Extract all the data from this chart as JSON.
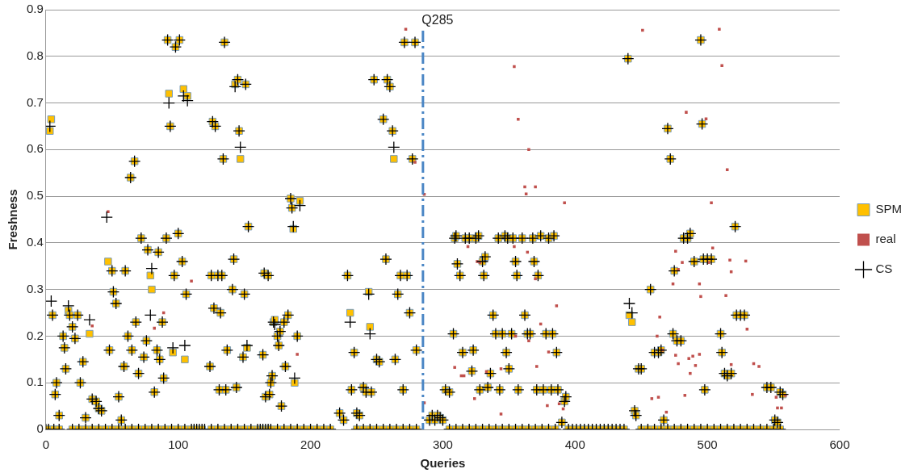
{
  "chart_data": {
    "type": "scatter",
    "xlabel": "Queries",
    "ylabel": "Freshness",
    "xlim": [
      0,
      600
    ],
    "xticks": [
      0,
      100,
      200,
      300,
      400,
      500,
      600
    ],
    "ylim": [
      0,
      0.9
    ],
    "yticks": [
      0,
      0.1,
      0.2,
      0.3,
      0.4,
      0.5,
      0.6,
      0.7,
      0.8,
      0.9
    ],
    "grid": "y",
    "legend": "right",
    "ref_lines": [
      {
        "axis": "x",
        "value": 285,
        "label": "Q285",
        "color": "#4a86c5",
        "line_style": "dashdot"
      }
    ],
    "series": [
      {
        "name": "SPM",
        "color": "#ffc000",
        "marker": "square",
        "x": [
          3,
          4,
          5,
          7,
          8,
          10,
          13,
          14,
          15,
          17,
          18,
          20,
          22,
          24,
          26,
          28,
          30,
          33,
          35,
          38,
          40,
          42,
          47,
          48,
          50,
          51,
          53,
          55,
          57,
          59,
          60,
          62,
          64,
          65,
          67,
          68,
          70,
          72,
          74,
          76,
          77,
          79,
          80,
          82,
          84,
          85,
          86,
          88,
          89,
          91,
          92,
          93,
          94,
          96,
          97,
          98,
          100,
          101,
          103,
          104,
          105,
          106,
          107,
          124,
          125,
          126,
          127,
          128,
          130,
          131,
          132,
          133,
          134,
          135,
          136,
          137,
          141,
          142,
          143,
          144,
          145,
          146,
          147,
          149,
          150,
          151,
          152,
          153,
          164,
          165,
          166,
          168,
          169,
          170,
          171,
          172,
          173,
          175,
          176,
          177,
          178,
          180,
          181,
          183,
          185,
          186,
          187,
          188,
          190,
          192,
          222,
          225,
          228,
          230,
          231,
          233,
          235,
          237,
          240,
          242,
          244,
          245,
          246,
          248,
          250,
          252,
          255,
          257,
          258,
          260,
          262,
          263,
          264,
          266,
          268,
          270,
          271,
          273,
          275,
          277,
          279,
          280,
          290,
          292,
          294,
          296,
          298,
          300,
          302,
          305,
          308,
          309,
          310,
          311,
          313,
          315,
          317,
          320,
          322,
          323,
          325,
          327,
          328,
          330,
          331,
          332,
          334,
          336,
          338,
          340,
          342,
          343,
          345,
          347,
          348,
          349,
          350,
          352,
          353,
          355,
          356,
          357,
          360,
          362,
          364,
          366,
          368,
          369,
          371,
          372,
          374,
          376,
          378,
          380,
          382,
          383,
          384,
          386,
          387,
          390,
          392,
          393,
          440,
          441,
          443,
          445,
          446,
          448,
          450,
          457,
          460,
          463,
          465,
          467,
          470,
          472,
          474,
          475,
          477,
          480,
          482,
          485,
          487,
          490,
          495,
          496,
          497,
          498,
          500,
          503,
          510,
          511,
          513,
          515,
          518,
          521,
          522,
          525,
          528,
          545,
          548,
          551,
          553,
          555,
          557,
          0,
          2,
          6,
          10,
          20,
          25,
          30,
          35,
          40,
          45,
          50,
          55,
          60,
          65,
          70,
          75,
          80,
          85,
          90,
          95,
          100,
          105,
          110,
          114,
          118,
          125,
          130,
          135,
          140,
          145,
          150,
          155,
          160,
          162,
          164,
          166,
          168,
          170,
          175,
          180,
          185,
          190,
          195,
          200,
          205,
          210,
          215,
          235,
          240,
          245,
          250,
          255,
          260,
          265,
          270,
          275,
          280,
          305,
          310,
          315,
          320,
          325,
          330,
          335,
          340,
          345,
          350,
          355,
          360,
          365,
          370,
          375,
          380,
          385,
          395,
          398,
          401,
          404,
          407,
          410,
          413,
          416,
          419,
          422,
          425,
          428,
          431,
          434,
          437,
          450,
          455,
          460,
          465,
          470,
          475,
          480,
          485,
          490,
          495,
          500,
          505,
          510,
          515,
          520,
          525,
          530,
          535,
          540,
          545,
          550,
          555
        ],
        "values": [
          0.64,
          0.665,
          0.245,
          0.075,
          0.1,
          0.03,
          0.2,
          0.175,
          0.13,
          0.255,
          0.245,
          0.22,
          0.195,
          0.245,
          0.1,
          0.145,
          0.025,
          0.205,
          0.065,
          0.06,
          0.045,
          0.04,
          0.36,
          0.17,
          0.34,
          0.295,
          0.27,
          0.07,
          0.02,
          0.135,
          0.34,
          0.2,
          0.54,
          0.17,
          0.575,
          0.23,
          0.12,
          0.41,
          0.155,
          0.19,
          0.385,
          0.33,
          0.3,
          0.08,
          0.17,
          0.38,
          0.15,
          0.23,
          0.11,
          0.41,
          0.835,
          0.72,
          0.65,
          0.165,
          0.33,
          0.82,
          0.42,
          0.835,
          0.36,
          0.73,
          0.15,
          0.29,
          0.715,
          0.135,
          0.33,
          0.66,
          0.26,
          0.65,
          0.33,
          0.085,
          0.25,
          0.33,
          0.58,
          0.83,
          0.085,
          0.17,
          0.3,
          0.365,
          0.74,
          0.09,
          0.75,
          0.64,
          0.58,
          0.155,
          0.29,
          0.74,
          0.175,
          0.435,
          0.16,
          0.335,
          0.07,
          0.33,
          0.075,
          0.1,
          0.115,
          0.23,
          0.235,
          0.2,
          0.18,
          0.21,
          0.05,
          0.23,
          0.135,
          0.245,
          0.495,
          0.475,
          0.43,
          0.1,
          0.2,
          0.49,
          0.035,
          0.02,
          0.33,
          0.25,
          0.085,
          0.165,
          0.035,
          0.03,
          0.09,
          0.08,
          0.295,
          0.22,
          0.08,
          0.75,
          0.15,
          0.145,
          0.665,
          0.365,
          0.75,
          0.735,
          0.64,
          0.58,
          0.15,
          0.29,
          0.33,
          0.085,
          0.83,
          0.33,
          0.25,
          0.58,
          0.83,
          0.17,
          0.02,
          0.03,
          0.02,
          0.03,
          0.025,
          0.02,
          0.085,
          0.08,
          0.205,
          0.41,
          0.415,
          0.355,
          0.33,
          0.165,
          0.41,
          0.41,
          0.125,
          0.17,
          0.41,
          0.415,
          0.085,
          0.36,
          0.33,
          0.37,
          0.09,
          0.12,
          0.245,
          0.205,
          0.41,
          0.085,
          0.205,
          0.415,
          0.165,
          0.41,
          0.13,
          0.205,
          0.41,
          0.36,
          0.33,
          0.085,
          0.41,
          0.245,
          0.205,
          0.205,
          0.41,
          0.36,
          0.085,
          0.33,
          0.415,
          0.085,
          0.205,
          0.41,
          0.085,
          0.205,
          0.415,
          0.165,
          0.085,
          0.015,
          0.06,
          0.07,
          0.795,
          0.245,
          0.23,
          0.04,
          0.03,
          0.13,
          0.13,
          0.3,
          0.165,
          0.165,
          0.17,
          0.02,
          0.645,
          0.58,
          0.205,
          0.34,
          0.19,
          0.19,
          0.41,
          0.41,
          0.42,
          0.36,
          0.835,
          0.655,
          0.365,
          0.085,
          0.365,
          0.365,
          0.205,
          0.165,
          0.12,
          0.115,
          0.12,
          0.435,
          0.245,
          0.245,
          0.245,
          0.09,
          0.09,
          0.02,
          0.015,
          0.08,
          0.075,
          0,
          0,
          0,
          0,
          0,
          0,
          0,
          0,
          0,
          0,
          0,
          0,
          0,
          0,
          0,
          0,
          0,
          0,
          0,
          0,
          0,
          0,
          0,
          0,
          0,
          0,
          0,
          0,
          0,
          0,
          0,
          0,
          0,
          0,
          0,
          0,
          0,
          0,
          0,
          0,
          0,
          0,
          0,
          0,
          0,
          0,
          0,
          0,
          0,
          0,
          0,
          0,
          0,
          0,
          0,
          0,
          0,
          0,
          0,
          0,
          0,
          0,
          0,
          0,
          0,
          0,
          0,
          0,
          0,
          0,
          0,
          0,
          0,
          0,
          0,
          0,
          0,
          0,
          0,
          0,
          0,
          0,
          0,
          0,
          0,
          0,
          0,
          0,
          0,
          0,
          0,
          0,
          0,
          0,
          0,
          0,
          0,
          0,
          0,
          0,
          0,
          0,
          0,
          0,
          0,
          0,
          0,
          0,
          0,
          0,
          0
        ]
      },
      {
        "name": "real",
        "color": "#c0504d",
        "marker": "square",
        "x": [
          47,
          89,
          82,
          35,
          190,
          110,
          272,
          354,
          357,
          365,
          362,
          370,
          363,
          286,
          279,
          451,
          509,
          511,
          484,
          499,
          515,
          503,
          392,
          504,
          476,
          481,
          478,
          474,
          501,
          517,
          518,
          494,
          495,
          514,
          529,
          530,
          464,
          462,
          466,
          476,
          478,
          486,
          491,
          489,
          494,
          487,
          518,
          535,
          539,
          458,
          463,
          483,
          469,
          559,
          556,
          553,
          552,
          534,
          319,
          326,
          328,
          354,
          364,
          370,
          386,
          374,
          355,
          365,
          380,
          286,
          309,
          314,
          316,
          324,
          344,
          333,
          371,
          379,
          388,
          391,
          344
        ],
        "values": [
          0.467,
          0.25,
          0.217,
          0.222,
          0.161,
          0.318,
          0.858,
          0.778,
          0.665,
          0.6,
          0.52,
          0.52,
          0.505,
          0.504,
          0.573,
          0.856,
          0.858,
          0.78,
          0.68,
          0.666,
          0.557,
          0.486,
          0.486,
          0.389,
          0.382,
          0.358,
          0.343,
          0.312,
          0.358,
          0.363,
          0.338,
          0.312,
          0.285,
          0.287,
          0.361,
          0.215,
          0.241,
          0.2,
          0.17,
          0.159,
          0.141,
          0.152,
          0.137,
          0.157,
          0.161,
          0.12,
          0.139,
          0.141,
          0.135,
          0.066,
          0.069,
          0.073,
          0.037,
          0.073,
          0.046,
          0.046,
          0.069,
          0.075,
          0.392,
          0.36,
          0.358,
          0.392,
          0.38,
          0.323,
          0.265,
          0.226,
          0.2,
          0.19,
          0.166,
          0.057,
          0.133,
          0.115,
          0.115,
          0.066,
          0.033,
          0.124,
          0.135,
          0.051,
          0.055,
          0.044,
          0.13
        ]
      },
      {
        "name": "CS",
        "color": "#000000",
        "marker": "cross",
        "x": [
          3,
          4,
          5,
          7,
          8,
          10,
          13,
          14,
          15,
          17,
          18,
          20,
          22,
          24,
          26,
          28,
          30,
          33,
          35,
          38,
          40,
          42,
          46,
          48,
          50,
          51,
          53,
          55,
          57,
          59,
          60,
          62,
          64,
          65,
          67,
          68,
          70,
          72,
          74,
          76,
          77,
          79,
          80,
          82,
          84,
          85,
          86,
          88,
          89,
          91,
          92,
          93,
          94,
          96,
          97,
          98,
          100,
          101,
          103,
          104,
          105,
          106,
          107,
          124,
          125,
          126,
          127,
          128,
          130,
          131,
          132,
          133,
          134,
          135,
          136,
          137,
          141,
          142,
          143,
          144,
          145,
          146,
          147,
          149,
          150,
          151,
          152,
          153,
          164,
          165,
          166,
          168,
          169,
          170,
          171,
          172,
          173,
          175,
          176,
          177,
          178,
          180,
          181,
          183,
          185,
          186,
          187,
          188,
          190,
          192,
          222,
          225,
          228,
          230,
          231,
          233,
          235,
          237,
          240,
          242,
          244,
          245,
          246,
          248,
          250,
          252,
          255,
          257,
          258,
          260,
          262,
          263,
          264,
          266,
          268,
          270,
          271,
          273,
          275,
          277,
          279,
          280,
          290,
          292,
          294,
          296,
          298,
          300,
          302,
          305,
          308,
          309,
          310,
          311,
          313,
          315,
          317,
          320,
          322,
          323,
          325,
          327,
          328,
          330,
          331,
          332,
          334,
          336,
          338,
          340,
          342,
          343,
          345,
          347,
          348,
          349,
          350,
          352,
          353,
          355,
          356,
          357,
          360,
          362,
          364,
          366,
          368,
          369,
          371,
          372,
          374,
          376,
          378,
          380,
          382,
          383,
          384,
          386,
          387,
          390,
          392,
          393,
          440,
          441,
          443,
          445,
          446,
          448,
          450,
          457,
          460,
          463,
          465,
          467,
          470,
          472,
          474,
          475,
          477,
          480,
          482,
          485,
          487,
          490,
          495,
          496,
          497,
          498,
          500,
          503,
          510,
          511,
          513,
          515,
          518,
          521,
          522,
          525,
          528,
          545,
          548,
          551,
          553,
          555,
          557,
          0,
          2,
          6,
          10,
          20,
          25,
          30,
          35,
          40,
          45,
          50,
          55,
          60,
          65,
          70,
          75,
          80,
          85,
          90,
          95,
          100,
          105,
          110,
          112,
          114,
          116,
          118,
          120,
          125,
          130,
          135,
          140,
          145,
          150,
          155,
          160,
          162,
          164,
          166,
          168,
          170,
          175,
          180,
          185,
          190,
          195,
          200,
          205,
          210,
          215,
          235,
          240,
          245,
          250,
          255,
          260,
          265,
          270,
          275,
          280,
          305,
          310,
          315,
          320,
          325,
          330,
          335,
          340,
          345,
          350,
          355,
          360,
          365,
          370,
          375,
          380,
          385,
          395,
          398,
          401,
          404,
          407,
          410,
          413,
          416,
          419,
          422,
          425,
          428,
          431,
          434,
          437,
          450,
          455,
          460,
          465,
          470,
          475,
          480,
          485,
          490,
          495,
          500,
          505,
          510,
          515,
          520,
          525,
          530,
          535,
          540,
          545,
          550,
          555
        ],
        "values": [
          0.65,
          0.275,
          0.245,
          0.075,
          0.1,
          0.03,
          0.2,
          0.175,
          0.13,
          0.265,
          0.245,
          0.22,
          0.195,
          0.245,
          0.1,
          0.145,
          0.025,
          0.235,
          0.065,
          0.06,
          0.045,
          0.04,
          0.455,
          0.17,
          0.34,
          0.295,
          0.27,
          0.07,
          0.02,
          0.135,
          0.34,
          0.2,
          0.54,
          0.17,
          0.575,
          0.23,
          0.12,
          0.41,
          0.155,
          0.19,
          0.385,
          0.245,
          0.345,
          0.08,
          0.17,
          0.38,
          0.15,
          0.23,
          0.11,
          0.41,
          0.835,
          0.7,
          0.65,
          0.175,
          0.33,
          0.82,
          0.42,
          0.835,
          0.36,
          0.715,
          0.18,
          0.29,
          0.705,
          0.135,
          0.33,
          0.66,
          0.26,
          0.65,
          0.33,
          0.085,
          0.25,
          0.33,
          0.58,
          0.83,
          0.085,
          0.17,
          0.3,
          0.365,
          0.735,
          0.09,
          0.75,
          0.64,
          0.605,
          0.155,
          0.29,
          0.74,
          0.18,
          0.435,
          0.16,
          0.335,
          0.07,
          0.33,
          0.075,
          0.1,
          0.115,
          0.23,
          0.225,
          0.2,
          0.18,
          0.21,
          0.05,
          0.23,
          0.135,
          0.245,
          0.495,
          0.475,
          0.435,
          0.11,
          0.2,
          0.48,
          0.035,
          0.02,
          0.33,
          0.23,
          0.085,
          0.165,
          0.035,
          0.03,
          0.09,
          0.08,
          0.29,
          0.205,
          0.08,
          0.75,
          0.15,
          0.145,
          0.665,
          0.365,
          0.75,
          0.735,
          0.64,
          0.605,
          0.15,
          0.29,
          0.33,
          0.085,
          0.83,
          0.33,
          0.25,
          0.58,
          0.83,
          0.17,
          0.02,
          0.03,
          0.02,
          0.03,
          0.025,
          0.02,
          0.085,
          0.08,
          0.205,
          0.41,
          0.415,
          0.355,
          0.33,
          0.165,
          0.41,
          0.41,
          0.125,
          0.17,
          0.41,
          0.415,
          0.085,
          0.36,
          0.33,
          0.37,
          0.09,
          0.12,
          0.245,
          0.205,
          0.41,
          0.085,
          0.205,
          0.415,
          0.165,
          0.41,
          0.13,
          0.205,
          0.41,
          0.36,
          0.33,
          0.085,
          0.41,
          0.245,
          0.205,
          0.205,
          0.41,
          0.36,
          0.085,
          0.33,
          0.415,
          0.085,
          0.205,
          0.41,
          0.085,
          0.205,
          0.415,
          0.165,
          0.085,
          0.015,
          0.06,
          0.07,
          0.795,
          0.27,
          0.25,
          0.04,
          0.03,
          0.13,
          0.13,
          0.3,
          0.165,
          0.165,
          0.17,
          0.02,
          0.645,
          0.58,
          0.205,
          0.34,
          0.19,
          0.19,
          0.41,
          0.41,
          0.42,
          0.36,
          0.835,
          0.655,
          0.365,
          0.085,
          0.365,
          0.365,
          0.205,
          0.165,
          0.12,
          0.115,
          0.12,
          0.435,
          0.245,
          0.245,
          0.245,
          0.09,
          0.09,
          0.02,
          0.015,
          0.08,
          0.075,
          0,
          0,
          0,
          0,
          0,
          0,
          0,
          0,
          0,
          0,
          0,
          0,
          0,
          0,
          0,
          0,
          0,
          0,
          0,
          0,
          0,
          0,
          0,
          0,
          0,
          0,
          0,
          0,
          0,
          0,
          0,
          0,
          0,
          0,
          0,
          0,
          0,
          0,
          0,
          0,
          0,
          0,
          0,
          0,
          0,
          0,
          0,
          0,
          0,
          0,
          0,
          0,
          0,
          0,
          0,
          0,
          0,
          0,
          0,
          0,
          0,
          0,
          0,
          0,
          0,
          0,
          0,
          0,
          0,
          0,
          0,
          0,
          0,
          0,
          0,
          0,
          0,
          0,
          0,
          0,
          0,
          0,
          0,
          0,
          0,
          0,
          0,
          0,
          0,
          0,
          0,
          0,
          0,
          0,
          0,
          0,
          0,
          0,
          0,
          0,
          0,
          0,
          0,
          0,
          0,
          0,
          0,
          0,
          0,
          0,
          0,
          0,
          0,
          0
        ]
      }
    ]
  }
}
